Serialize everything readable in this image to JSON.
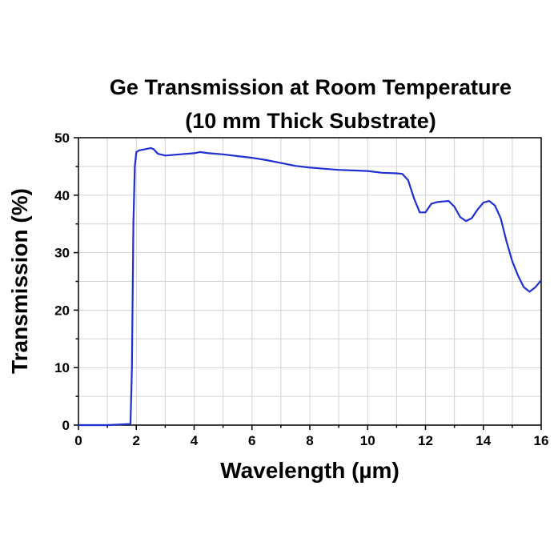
{
  "chart_data": {
    "type": "line",
    "title_lines": [
      "Ge Transmission at Room Temperature",
      "(10 mm Thick Substrate)"
    ],
    "xlabel": "Wavelength (µm)",
    "ylabel": "Transmission (%)",
    "xlim": [
      0,
      16
    ],
    "ylim": [
      0,
      50
    ],
    "x_ticks": [
      0,
      2,
      4,
      6,
      8,
      10,
      12,
      14,
      16
    ],
    "y_ticks": [
      0,
      10,
      20,
      30,
      40,
      50
    ],
    "x_tick_labels": [
      "0",
      "2",
      "4",
      "6",
      "8",
      "10",
      "12",
      "14",
      "16"
    ],
    "y_tick_labels": [
      "0",
      "10",
      "20",
      "30",
      "40",
      "50"
    ],
    "grid": true,
    "line_color": "#1f2fd0",
    "series": [
      {
        "x": [
          0.0,
          1.0,
          1.8,
          1.85,
          1.9,
          1.95,
          2.0,
          2.1,
          2.3,
          2.5,
          2.6,
          2.75,
          3.0,
          3.5,
          4.0,
          4.2,
          4.5,
          5.0,
          5.5,
          6.0,
          6.5,
          7.0,
          7.5,
          8.0,
          8.5,
          9.0,
          9.5,
          10.0,
          10.5,
          11.0,
          11.2,
          11.4,
          11.6,
          11.8,
          12.0,
          12.2,
          12.4,
          12.6,
          12.8,
          13.0,
          13.2,
          13.4,
          13.6,
          13.8,
          14.0,
          14.2,
          14.4,
          14.6,
          14.8,
          15.0,
          15.2,
          15.4,
          15.6,
          15.8,
          16.0
        ],
        "y": [
          0.0,
          0.0,
          0.2,
          10.0,
          35.0,
          45.0,
          47.5,
          47.8,
          48.0,
          48.2,
          48.0,
          47.2,
          46.9,
          47.1,
          47.3,
          47.5,
          47.3,
          47.1,
          46.8,
          46.5,
          46.1,
          45.6,
          45.1,
          44.8,
          44.6,
          44.4,
          44.3,
          44.2,
          43.9,
          43.8,
          43.7,
          42.6,
          39.5,
          37.0,
          37.0,
          38.5,
          38.8,
          38.9,
          39.0,
          38.0,
          36.2,
          35.5,
          36.0,
          37.5,
          38.7,
          39.0,
          38.2,
          36.0,
          32.0,
          28.5,
          26.0,
          24.0,
          23.2,
          24.0,
          25.2
        ]
      }
    ]
  }
}
